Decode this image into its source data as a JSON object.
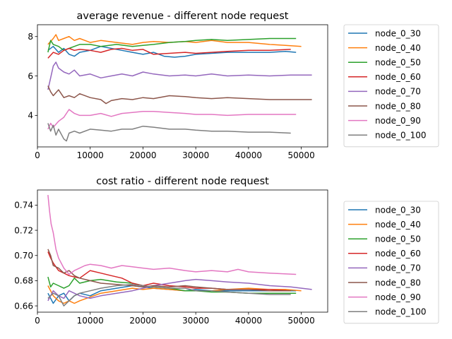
{
  "chart_data": [
    {
      "type": "line",
      "title": "average revenue - different node request",
      "xlabel": "",
      "ylabel": "",
      "xlim": [
        0,
        55000
      ],
      "ylim": [
        2.4,
        8.6
      ],
      "xticks": [
        0,
        10000,
        20000,
        30000,
        40000,
        50000
      ],
      "xtick_labels": [
        "0",
        "10000",
        "20000",
        "30000",
        "40000",
        "50000"
      ],
      "yticks": [
        4,
        6,
        8
      ],
      "ytick_labels": [
        "4",
        "6",
        "8"
      ],
      "grid": false,
      "legend_position": "outside-right",
      "series": [
        {
          "name": "node_0_30",
          "color": "#1f77b4",
          "x": [
            2000,
            3000,
            4000,
            5000,
            6000,
            7000,
            8000,
            10000,
            12000,
            14000,
            16000,
            18000,
            20000,
            22000,
            24000,
            26000,
            28000,
            30000,
            33000,
            36000,
            40000,
            44000,
            47000,
            49000
          ],
          "y": [
            7.3,
            7.5,
            7.2,
            7.4,
            7.1,
            7.0,
            7.2,
            7.3,
            7.5,
            7.4,
            7.3,
            7.2,
            7.1,
            7.2,
            7.0,
            6.95,
            7.0,
            7.1,
            7.15,
            7.2,
            7.2,
            7.2,
            7.25,
            7.2
          ]
        },
        {
          "name": "node_0_40",
          "color": "#ff7f0e",
          "x": [
            2000,
            3000,
            3500,
            4000,
            5000,
            6000,
            7000,
            8000,
            10000,
            12000,
            15000,
            18000,
            20000,
            22000,
            25000,
            28000,
            30000,
            33000,
            36000,
            40000,
            44000,
            47000,
            50000
          ],
          "y": [
            7.6,
            7.9,
            8.1,
            7.8,
            7.9,
            8.0,
            7.8,
            7.9,
            7.7,
            7.8,
            7.7,
            7.6,
            7.7,
            7.75,
            7.7,
            7.75,
            7.7,
            7.8,
            7.7,
            7.7,
            7.6,
            7.55,
            7.5
          ]
        },
        {
          "name": "node_0_50",
          "color": "#2ca02c",
          "x": [
            2000,
            2500,
            3000,
            4000,
            5000,
            6000,
            7000,
            8000,
            10000,
            12000,
            15000,
            18000,
            20000,
            22000,
            25000,
            28000,
            30000,
            33000,
            36000,
            40000,
            44000,
            47000,
            49000
          ],
          "y": [
            7.2,
            7.8,
            7.6,
            7.5,
            7.3,
            7.4,
            7.5,
            7.6,
            7.6,
            7.5,
            7.6,
            7.5,
            7.55,
            7.6,
            7.7,
            7.75,
            7.8,
            7.85,
            7.8,
            7.85,
            7.9,
            7.9,
            7.9
          ]
        },
        {
          "name": "node_0_60",
          "color": "#d62728",
          "x": [
            2000,
            3000,
            4000,
            5000,
            6000,
            7000,
            8000,
            10000,
            12000,
            14000,
            16000,
            18000,
            20000,
            22000,
            25000,
            28000,
            30000,
            33000,
            36000,
            40000,
            44000,
            48000
          ],
          "y": [
            6.9,
            7.2,
            7.1,
            7.3,
            7.4,
            7.3,
            7.35,
            7.3,
            7.2,
            7.35,
            7.4,
            7.3,
            7.35,
            7.1,
            7.15,
            7.2,
            7.15,
            7.2,
            7.25,
            7.3,
            7.3,
            7.35
          ]
        },
        {
          "name": "node_0_70",
          "color": "#9467bd",
          "x": [
            2000,
            2500,
            3000,
            3500,
            4000,
            5000,
            6000,
            7000,
            8000,
            10000,
            12000,
            14000,
            16000,
            18000,
            20000,
            22000,
            25000,
            28000,
            30000,
            33000,
            36000,
            40000,
            44000,
            48000,
            52000
          ],
          "y": [
            5.3,
            5.9,
            6.5,
            6.7,
            6.4,
            6.2,
            6.1,
            6.3,
            6.0,
            6.1,
            5.9,
            6.0,
            6.1,
            6.0,
            6.2,
            6.1,
            6.0,
            6.05,
            6.0,
            6.1,
            6.0,
            6.05,
            6.0,
            6.05,
            6.05
          ]
        },
        {
          "name": "node_0_80",
          "color": "#8c564b",
          "x": [
            2000,
            2500,
            3000,
            4000,
            5000,
            6000,
            7000,
            8000,
            10000,
            12000,
            13000,
            14000,
            16000,
            18000,
            20000,
            22000,
            25000,
            28000,
            30000,
            33000,
            36000,
            40000,
            44000,
            48000,
            52000
          ],
          "y": [
            5.5,
            5.2,
            5.0,
            5.3,
            4.9,
            5.0,
            4.9,
            5.1,
            4.9,
            4.8,
            4.6,
            4.75,
            4.85,
            4.8,
            4.9,
            4.85,
            5.0,
            4.95,
            4.9,
            4.85,
            4.9,
            4.85,
            4.8,
            4.8,
            4.8
          ]
        },
        {
          "name": "node_0_90",
          "color": "#e377c2",
          "x": [
            2000,
            2500,
            3000,
            4000,
            5000,
            6000,
            7000,
            8000,
            10000,
            12000,
            14000,
            16000,
            18000,
            20000,
            22000,
            25000,
            28000,
            30000,
            33000,
            36000,
            40000,
            44000,
            49000
          ],
          "y": [
            3.3,
            3.6,
            3.4,
            3.7,
            3.9,
            4.3,
            4.1,
            4.0,
            4.0,
            4.1,
            3.95,
            4.1,
            4.15,
            4.2,
            4.2,
            4.15,
            4.1,
            4.05,
            4.05,
            4.0,
            4.05,
            4.05,
            4.05
          ]
        },
        {
          "name": "node_0_100",
          "color": "#7f7f7f",
          "x": [
            2000,
            2500,
            3000,
            3500,
            4000,
            5000,
            5500,
            6000,
            7000,
            8000,
            10000,
            12000,
            14000,
            16000,
            18000,
            20000,
            22000,
            25000,
            28000,
            30000,
            33000,
            36000,
            40000,
            44000,
            48000
          ],
          "y": [
            3.6,
            3.2,
            3.5,
            3.0,
            3.3,
            2.8,
            2.7,
            3.1,
            3.2,
            3.1,
            3.3,
            3.25,
            3.2,
            3.3,
            3.3,
            3.45,
            3.4,
            3.3,
            3.3,
            3.25,
            3.2,
            3.2,
            3.15,
            3.15,
            3.1
          ]
        }
      ]
    },
    {
      "type": "line",
      "title": "cost ratio - different node request",
      "xlabel": "",
      "ylabel": "",
      "xlim": [
        0,
        55000
      ],
      "ylim": [
        0.655,
        0.752
      ],
      "xticks": [
        0,
        10000,
        20000,
        30000,
        40000,
        50000
      ],
      "xtick_labels": [
        "0",
        "10000",
        "20000",
        "30000",
        "40000",
        "50000"
      ],
      "yticks": [
        0.66,
        0.68,
        0.7,
        0.72,
        0.74
      ],
      "ytick_labels": [
        "0.66",
        "0.68",
        "0.70",
        "0.72",
        "0.74"
      ],
      "grid": false,
      "legend_position": "outside-right",
      "series": [
        {
          "name": "node_0_30",
          "color": "#1f77b4",
          "x": [
            2000,
            3000,
            4000,
            5000,
            6000,
            7000,
            8000,
            10000,
            12000,
            15000,
            18000,
            20000,
            22000,
            25000,
            28000,
            30000,
            33000,
            36000,
            40000,
            44000,
            49000
          ],
          "y": [
            0.67,
            0.662,
            0.668,
            0.67,
            0.664,
            0.668,
            0.67,
            0.668,
            0.672,
            0.674,
            0.676,
            0.675,
            0.674,
            0.673,
            0.672,
            0.673,
            0.672,
            0.672,
            0.672,
            0.672,
            0.672
          ]
        },
        {
          "name": "node_0_40",
          "color": "#ff7f0e",
          "x": [
            2000,
            3000,
            4000,
            5000,
            6000,
            7000,
            8000,
            10000,
            12000,
            15000,
            18000,
            20000,
            22000,
            25000,
            28000,
            30000,
            33000,
            36000,
            40000,
            44000,
            47000,
            50000
          ],
          "y": [
            0.676,
            0.668,
            0.664,
            0.662,
            0.664,
            0.662,
            0.664,
            0.667,
            0.67,
            0.672,
            0.674,
            0.673,
            0.674,
            0.673,
            0.672,
            0.672,
            0.672,
            0.673,
            0.674,
            0.673,
            0.673,
            0.672
          ]
        },
        {
          "name": "node_0_50",
          "color": "#2ca02c",
          "x": [
            2000,
            2500,
            3000,
            4000,
            5000,
            6000,
            7000,
            8000,
            10000,
            12000,
            15000,
            18000,
            20000,
            22000,
            25000,
            28000,
            30000,
            33000,
            36000,
            40000,
            44000,
            49000
          ],
          "y": [
            0.683,
            0.675,
            0.678,
            0.676,
            0.674,
            0.676,
            0.682,
            0.678,
            0.68,
            0.681,
            0.679,
            0.678,
            0.676,
            0.675,
            0.674,
            0.672,
            0.672,
            0.671,
            0.671,
            0.67,
            0.67,
            0.67
          ]
        },
        {
          "name": "node_0_60",
          "color": "#d62728",
          "x": [
            2000,
            2500,
            3000,
            4000,
            5000,
            6000,
            7000,
            8000,
            10000,
            12000,
            14000,
            16000,
            18000,
            20000,
            22000,
            25000,
            28000,
            30000,
            33000,
            36000,
            40000,
            44000,
            48000
          ],
          "y": [
            0.703,
            0.698,
            0.694,
            0.688,
            0.686,
            0.684,
            0.683,
            0.682,
            0.688,
            0.686,
            0.684,
            0.682,
            0.678,
            0.676,
            0.678,
            0.676,
            0.675,
            0.674,
            0.674,
            0.673,
            0.673,
            0.673,
            0.672
          ]
        },
        {
          "name": "node_0_70",
          "color": "#9467bd",
          "x": [
            2000,
            3000,
            4000,
            5000,
            6000,
            7000,
            8000,
            10000,
            12000,
            15000,
            18000,
            20000,
            22000,
            25000,
            28000,
            30000,
            33000,
            36000,
            40000,
            44000,
            48000,
            52000
          ],
          "y": [
            0.664,
            0.672,
            0.668,
            0.666,
            0.672,
            0.67,
            0.668,
            0.666,
            0.668,
            0.67,
            0.672,
            0.674,
            0.676,
            0.678,
            0.68,
            0.681,
            0.68,
            0.679,
            0.678,
            0.676,
            0.675,
            0.673
          ]
        },
        {
          "name": "node_0_80",
          "color": "#8c564b",
          "x": [
            2000,
            2500,
            3000,
            4000,
            5000,
            6000,
            7000,
            8000,
            10000,
            12000,
            15000,
            18000,
            20000,
            22000,
            25000,
            28000,
            30000,
            33000,
            36000,
            40000,
            44000,
            48000
          ],
          "y": [
            0.705,
            0.7,
            0.692,
            0.69,
            0.686,
            0.688,
            0.684,
            0.682,
            0.68,
            0.678,
            0.677,
            0.676,
            0.675,
            0.676,
            0.675,
            0.676,
            0.675,
            0.674,
            0.673,
            0.673,
            0.672,
            0.672
          ]
        },
        {
          "name": "node_0_90",
          "color": "#e377c2",
          "x": [
            2000,
            2300,
            2600,
            3000,
            3500,
            4000,
            5000,
            6000,
            7000,
            8000,
            9000,
            10000,
            12000,
            14000,
            16000,
            18000,
            20000,
            22000,
            25000,
            28000,
            30000,
            33000,
            36000,
            38000,
            40000,
            44000,
            49000
          ],
          "y": [
            0.748,
            0.735,
            0.725,
            0.718,
            0.705,
            0.698,
            0.69,
            0.685,
            0.688,
            0.69,
            0.692,
            0.693,
            0.692,
            0.69,
            0.692,
            0.691,
            0.69,
            0.689,
            0.69,
            0.688,
            0.687,
            0.688,
            0.687,
            0.689,
            0.687,
            0.686,
            0.685
          ]
        },
        {
          "name": "node_0_100",
          "color": "#7f7f7f",
          "x": [
            2000,
            3000,
            4000,
            5000,
            6000,
            7000,
            8000,
            10000,
            12000,
            15000,
            18000,
            20000,
            22000,
            25000,
            28000,
            30000,
            33000,
            36000,
            40000,
            44000,
            48000
          ],
          "y": [
            0.666,
            0.67,
            0.668,
            0.66,
            0.664,
            0.668,
            0.67,
            0.672,
            0.674,
            0.676,
            0.677,
            0.676,
            0.675,
            0.674,
            0.674,
            0.672,
            0.672,
            0.671,
            0.67,
            0.669,
            0.669
          ]
        }
      ]
    }
  ]
}
